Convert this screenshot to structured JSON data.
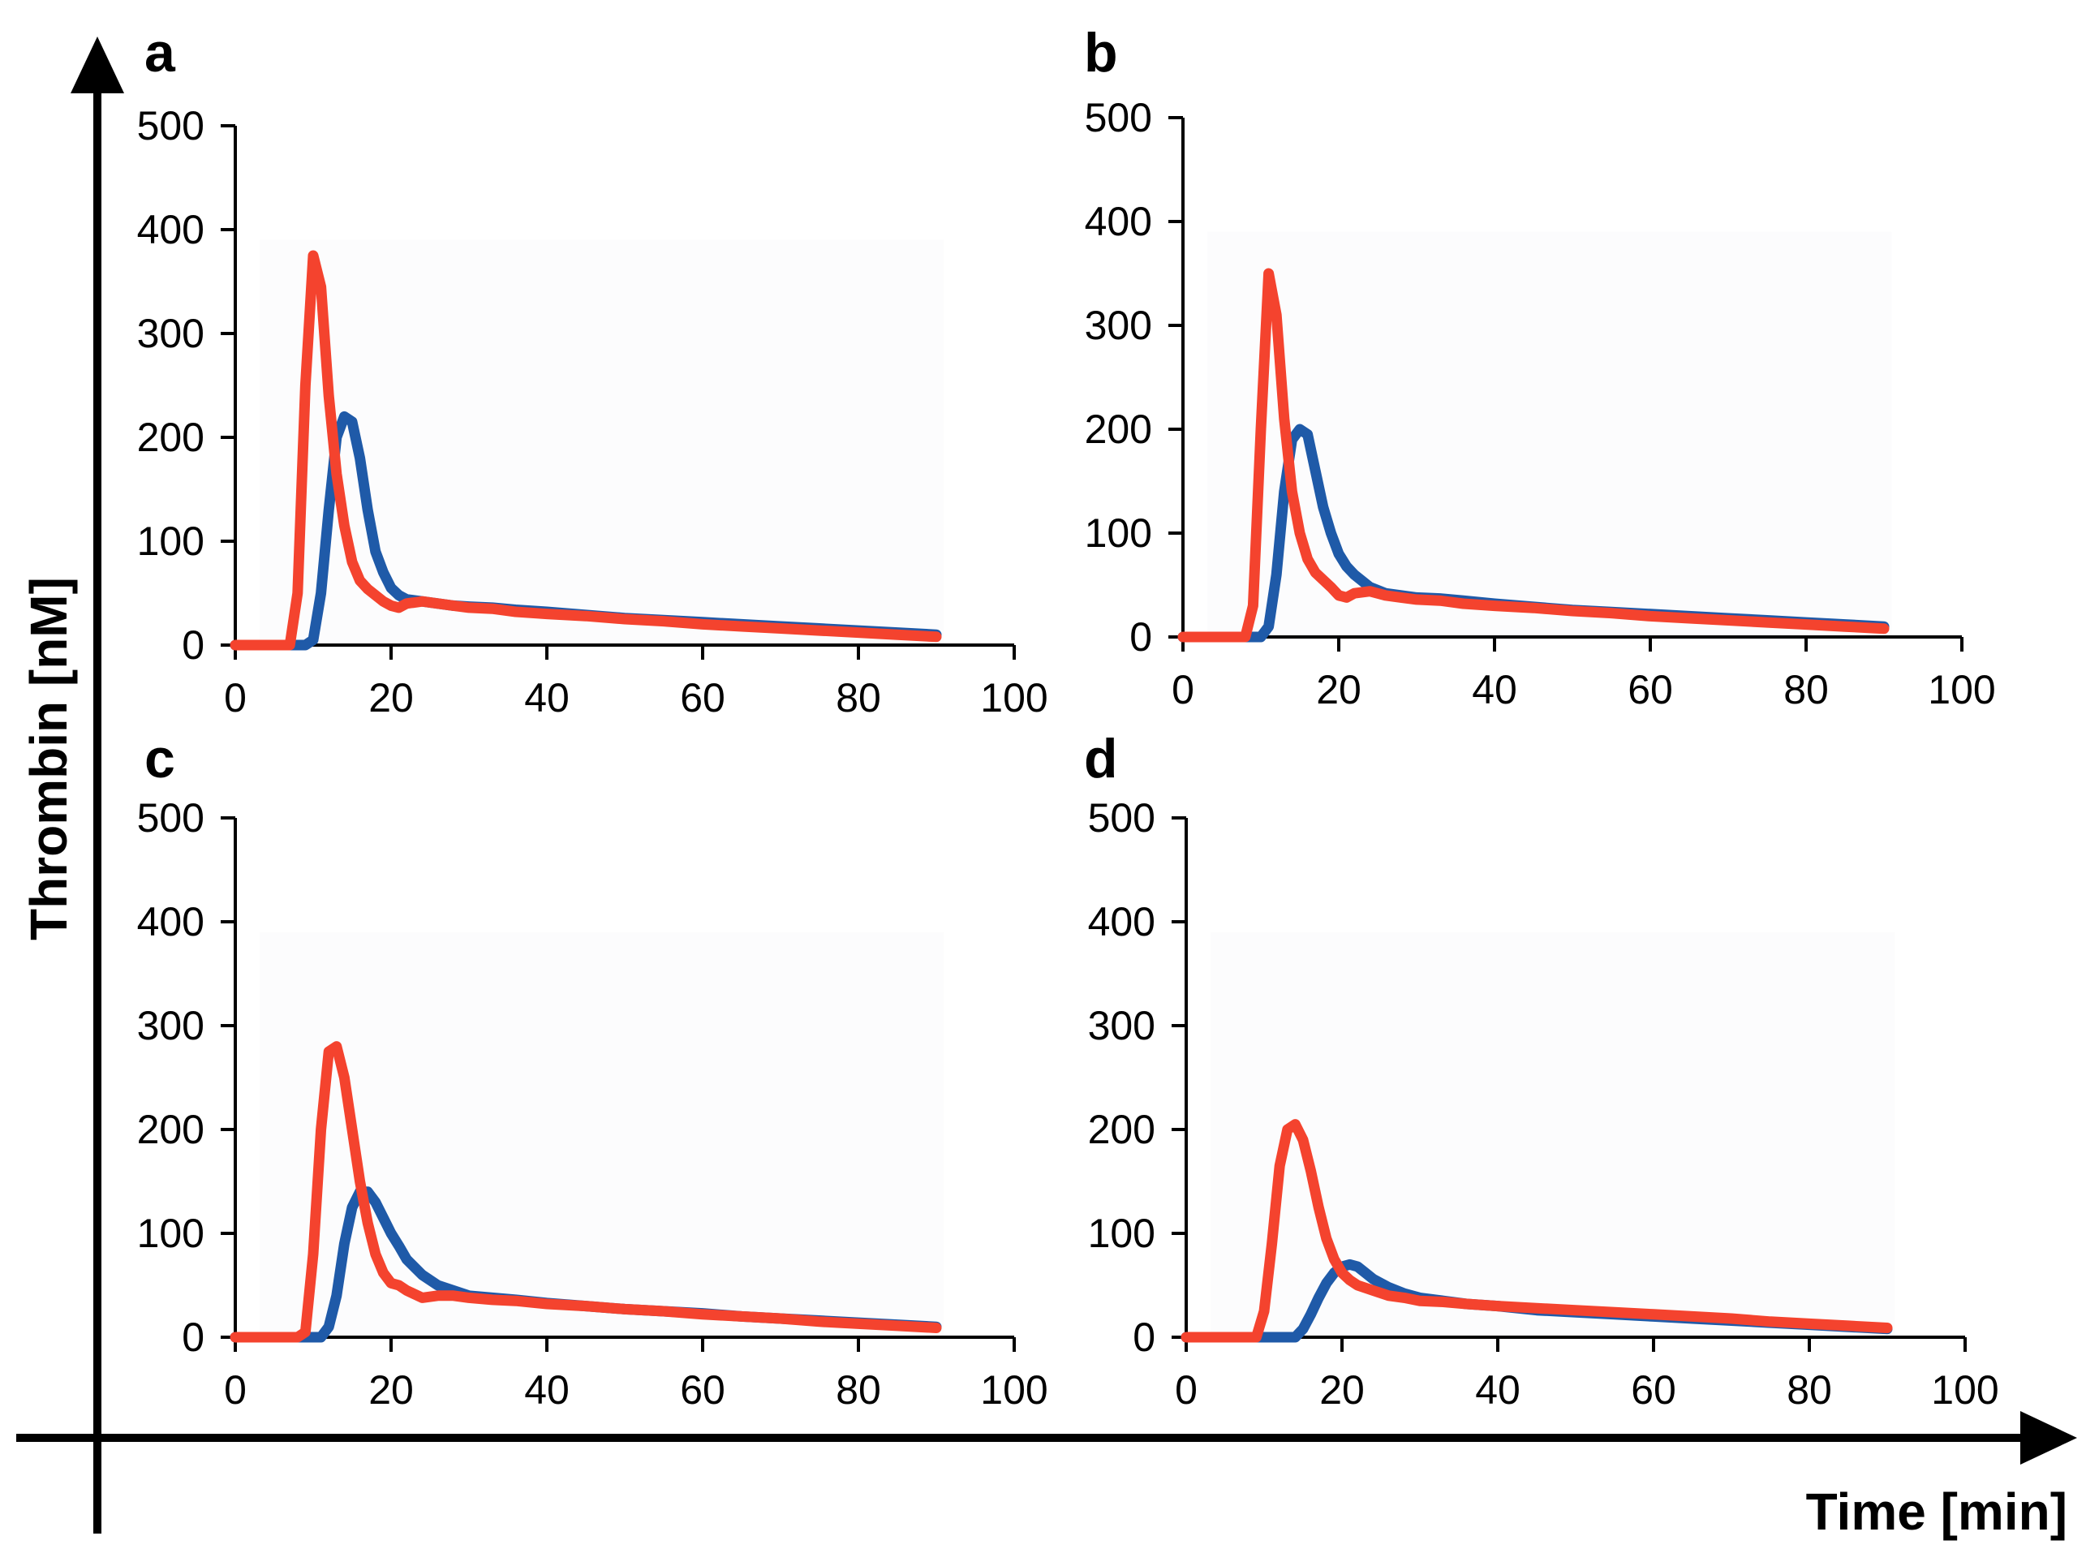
{
  "figure": {
    "y_axis_title": "Thrombin [nM]",
    "x_axis_title": "Time [min]"
  },
  "colors": {
    "blue_series": "#1f5aa8",
    "red_series": "#f4432e"
  },
  "chart_data": [
    {
      "panel": "a",
      "type": "line",
      "xlim": [
        0,
        100
      ],
      "ylim": [
        0,
        500
      ],
      "xticks": [
        0,
        20,
        40,
        60,
        80,
        100
      ],
      "yticks": [
        0,
        100,
        200,
        300,
        400,
        500
      ],
      "series": [
        {
          "name": "blue",
          "x": [
            0,
            8,
            9,
            10,
            11,
            12,
            13,
            14,
            15,
            16,
            17,
            18,
            19,
            20,
            21,
            22,
            24,
            26,
            28,
            30,
            33,
            36,
            40,
            45,
            50,
            55,
            60,
            65,
            70,
            75,
            80,
            85,
            90
          ],
          "y": [
            0,
            0,
            0,
            5,
            50,
            130,
            200,
            220,
            215,
            180,
            130,
            90,
            70,
            55,
            48,
            44,
            42,
            40,
            38,
            37,
            36,
            34,
            32,
            29,
            26,
            24,
            22,
            20,
            18,
            16,
            14,
            12,
            10
          ]
        },
        {
          "name": "red",
          "x": [
            0,
            7,
            8,
            9,
            10,
            11,
            12,
            13,
            14,
            15,
            16,
            17,
            18,
            19,
            20,
            21,
            22,
            24,
            26,
            28,
            30,
            33,
            36,
            40,
            45,
            50,
            55,
            60,
            65,
            70,
            75,
            80,
            85,
            90
          ],
          "y": [
            0,
            0,
            50,
            250,
            375,
            345,
            240,
            165,
            115,
            80,
            62,
            54,
            48,
            42,
            38,
            36,
            40,
            42,
            40,
            38,
            36,
            35,
            32,
            30,
            28,
            25,
            23,
            20,
            18,
            16,
            14,
            12,
            10,
            8
          ]
        }
      ]
    },
    {
      "panel": "b",
      "type": "line",
      "xlim": [
        0,
        100
      ],
      "ylim": [
        0,
        500
      ],
      "xticks": [
        0,
        20,
        40,
        60,
        80,
        100
      ],
      "yticks": [
        0,
        100,
        200,
        300,
        400,
        500
      ],
      "series": [
        {
          "name": "blue",
          "x": [
            0,
            10,
            11,
            12,
            13,
            14,
            15,
            16,
            17,
            18,
            19,
            20,
            21,
            22,
            24,
            26,
            28,
            30,
            33,
            36,
            40,
            45,
            50,
            55,
            60,
            65,
            70,
            75,
            80,
            85,
            90
          ],
          "y": [
            0,
            0,
            10,
            60,
            140,
            190,
            200,
            195,
            160,
            125,
            100,
            80,
            68,
            60,
            48,
            42,
            40,
            38,
            37,
            35,
            32,
            29,
            26,
            24,
            22,
            20,
            18,
            16,
            14,
            12,
            10
          ]
        },
        {
          "name": "red",
          "x": [
            0,
            8,
            9,
            10,
            11,
            12,
            13,
            14,
            15,
            16,
            17,
            18,
            19,
            20,
            21,
            22,
            24,
            26,
            28,
            30,
            33,
            36,
            40,
            45,
            50,
            55,
            60,
            65,
            70,
            75,
            80,
            85,
            90
          ],
          "y": [
            0,
            0,
            30,
            200,
            350,
            310,
            210,
            140,
            100,
            75,
            62,
            55,
            48,
            40,
            38,
            42,
            44,
            40,
            38,
            36,
            35,
            32,
            30,
            28,
            25,
            23,
            20,
            18,
            16,
            14,
            12,
            10,
            8
          ]
        }
      ]
    },
    {
      "panel": "c",
      "type": "line",
      "xlim": [
        0,
        100
      ],
      "ylim": [
        0,
        500
      ],
      "xticks": [
        0,
        20,
        40,
        60,
        80,
        100
      ],
      "yticks": [
        0,
        100,
        200,
        300,
        400,
        500
      ],
      "series": [
        {
          "name": "blue",
          "x": [
            0,
            11,
            12,
            13,
            14,
            15,
            16,
            17,
            18,
            19,
            20,
            21,
            22,
            24,
            26,
            28,
            30,
            33,
            36,
            40,
            45,
            50,
            55,
            60,
            65,
            70,
            75,
            80,
            85,
            90
          ],
          "y": [
            0,
            0,
            10,
            40,
            90,
            125,
            140,
            140,
            130,
            115,
            100,
            88,
            75,
            60,
            50,
            45,
            40,
            38,
            36,
            33,
            30,
            27,
            25,
            23,
            20,
            18,
            16,
            14,
            12,
            10
          ]
        },
        {
          "name": "red",
          "x": [
            0,
            8,
            9,
            10,
            11,
            12,
            13,
            14,
            15,
            16,
            17,
            18,
            19,
            20,
            21,
            22,
            24,
            26,
            28,
            30,
            33,
            36,
            40,
            45,
            50,
            55,
            60,
            65,
            70,
            75,
            80,
            85,
            90
          ],
          "y": [
            0,
            0,
            5,
            80,
            200,
            275,
            280,
            250,
            200,
            150,
            110,
            80,
            62,
            52,
            50,
            45,
            38,
            40,
            40,
            38,
            36,
            35,
            32,
            30,
            27,
            25,
            22,
            20,
            18,
            15,
            13,
            11,
            9
          ]
        }
      ]
    },
    {
      "panel": "d",
      "type": "line",
      "xlim": [
        0,
        100
      ],
      "ylim": [
        0,
        500
      ],
      "xticks": [
        0,
        20,
        40,
        60,
        80,
        100
      ],
      "yticks": [
        0,
        100,
        200,
        300,
        400,
        500
      ],
      "series": [
        {
          "name": "blue",
          "x": [
            0,
            14,
            15,
            16,
            17,
            18,
            19,
            20,
            21,
            22,
            23,
            24,
            26,
            28,
            30,
            33,
            36,
            40,
            45,
            50,
            55,
            60,
            65,
            70,
            75,
            80,
            85,
            90
          ],
          "y": [
            0,
            0,
            8,
            22,
            38,
            52,
            62,
            68,
            70,
            68,
            62,
            56,
            48,
            42,
            38,
            35,
            32,
            30,
            26,
            24,
            22,
            20,
            18,
            16,
            14,
            12,
            10,
            8
          ]
        },
        {
          "name": "red",
          "x": [
            0,
            9,
            10,
            11,
            12,
            13,
            14,
            15,
            16,
            17,
            18,
            19,
            20,
            21,
            22,
            24,
            26,
            28,
            30,
            33,
            36,
            40,
            45,
            50,
            55,
            60,
            65,
            70,
            75,
            80,
            85,
            90
          ],
          "y": [
            0,
            0,
            25,
            90,
            165,
            200,
            205,
            190,
            160,
            125,
            95,
            75,
            62,
            55,
            50,
            45,
            40,
            38,
            35,
            34,
            32,
            30,
            28,
            26,
            24,
            22,
            20,
            18,
            15,
            13,
            11,
            9
          ]
        }
      ]
    }
  ]
}
